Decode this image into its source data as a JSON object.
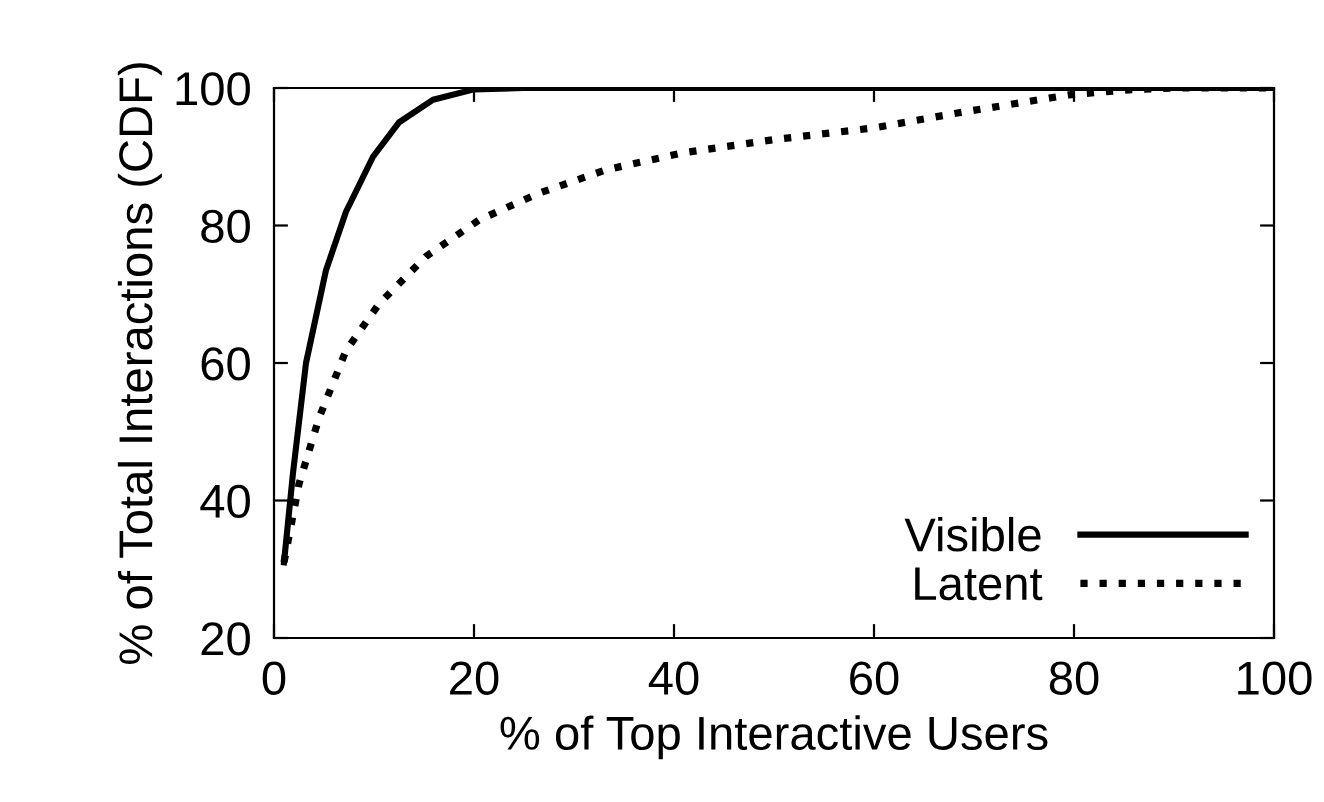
{
  "chart_data": {
    "type": "line",
    "xlabel": "% of Top Interactive Users",
    "ylabel": "% of Total Interactions (CDF)",
    "xlim": [
      0,
      100
    ],
    "ylim": [
      20,
      100
    ],
    "xticks": [
      0,
      20,
      40,
      60,
      80,
      100
    ],
    "yticks": [
      20,
      40,
      60,
      80,
      100
    ],
    "grid": false,
    "legend": "bottom right",
    "series": [
      {
        "name": "Visible",
        "color": "#000000",
        "line_style": "solid",
        "x": [
          1,
          1.9,
          3.2,
          5.2,
          7.2,
          9.9,
          12.5,
          15.9,
          20,
          25,
          40,
          60,
          80,
          100
        ],
        "values": [
          31,
          44,
          60,
          73.5,
          82,
          90,
          95,
          98.3,
          99.8,
          100,
          100,
          100,
          100,
          100
        ]
      },
      {
        "name": "Latent",
        "color": "#000000",
        "line_style": "dotted",
        "x": [
          1,
          2.5,
          4.5,
          7.2,
          10.5,
          15.2,
          20.5,
          26.5,
          33.2,
          41,
          50,
          60,
          68.5,
          79.5,
          86,
          90,
          100
        ],
        "values": [
          31,
          42.4,
          52,
          61.8,
          68.6,
          75.5,
          80.8,
          84.7,
          88.1,
          90.6,
          92.5,
          94.2,
          96.4,
          99,
          99.8,
          100,
          100
        ]
      }
    ]
  }
}
